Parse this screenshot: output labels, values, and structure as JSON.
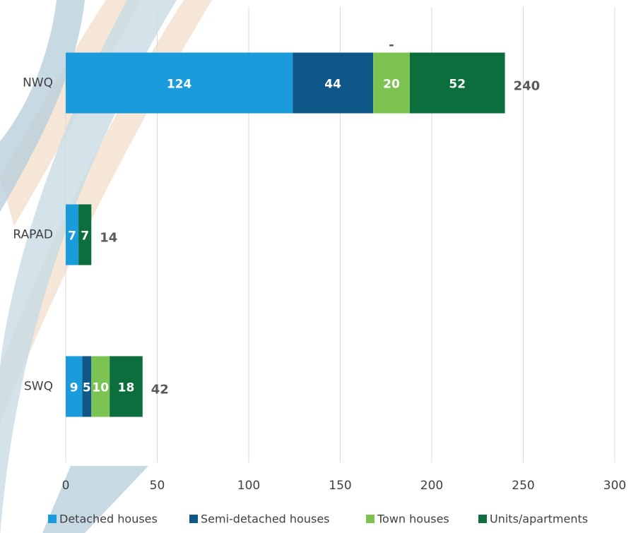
{
  "chart_data": {
    "type": "stacked-bar-horizontal",
    "categories": [
      "NWQ",
      "RAPAD",
      "SWQ"
    ],
    "series": [
      {
        "name": "Detached houses",
        "color": "#1a9bdb",
        "values": [
          124,
          7,
          9
        ]
      },
      {
        "name": "Semi-detached houses",
        "color": "#0f5788",
        "values": [
          44,
          0,
          5
        ]
      },
      {
        "name": "Town houses",
        "color": "#7dc352",
        "values": [
          20,
          0,
          10
        ]
      },
      {
        "name": "Units/apartments",
        "color": "#0b6e3c",
        "values": [
          52,
          7,
          18
        ]
      }
    ],
    "totals": [
      240,
      14,
      42
    ],
    "annotation": "-",
    "xlim": [
      0,
      300
    ],
    "xticks": [
      0,
      50,
      100,
      150,
      200,
      250,
      300
    ],
    "grid": true
  }
}
